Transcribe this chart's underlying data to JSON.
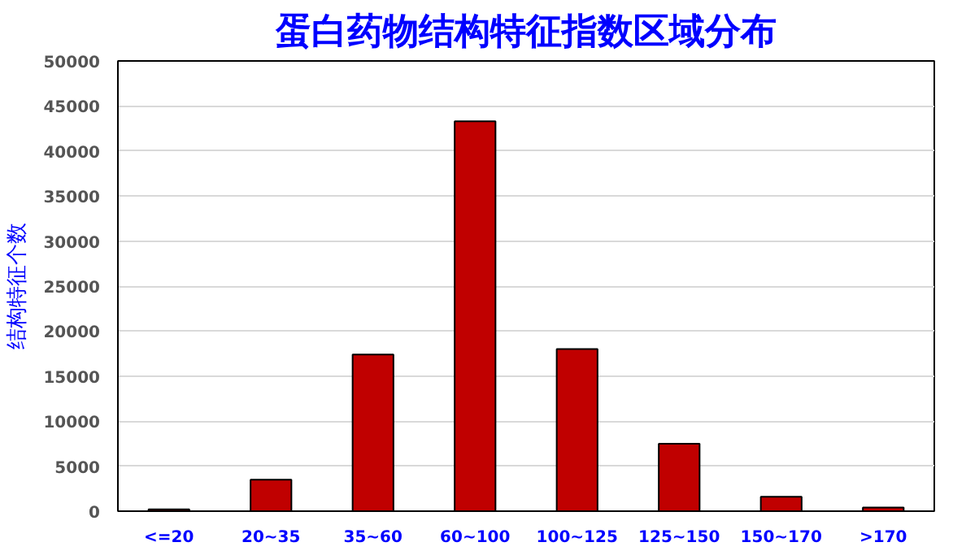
{
  "chart_data": {
    "type": "bar",
    "title": "蛋白药物结构特征指数区域分布",
    "ylabel": "结构特征个数",
    "categories": [
      "<=20",
      "20~35",
      "35~60",
      "60~100",
      "100~125",
      "125~150",
      "150~170",
      ">170"
    ],
    "values": [
      200,
      3500,
      17400,
      43300,
      18000,
      7500,
      1600,
      400
    ],
    "color": "#c00000",
    "ylim": [
      0,
      50000
    ],
    "yticks": [
      0,
      5000,
      10000,
      15000,
      20000,
      25000,
      30000,
      35000,
      40000,
      45000,
      50000
    ],
    "grid": "y"
  }
}
